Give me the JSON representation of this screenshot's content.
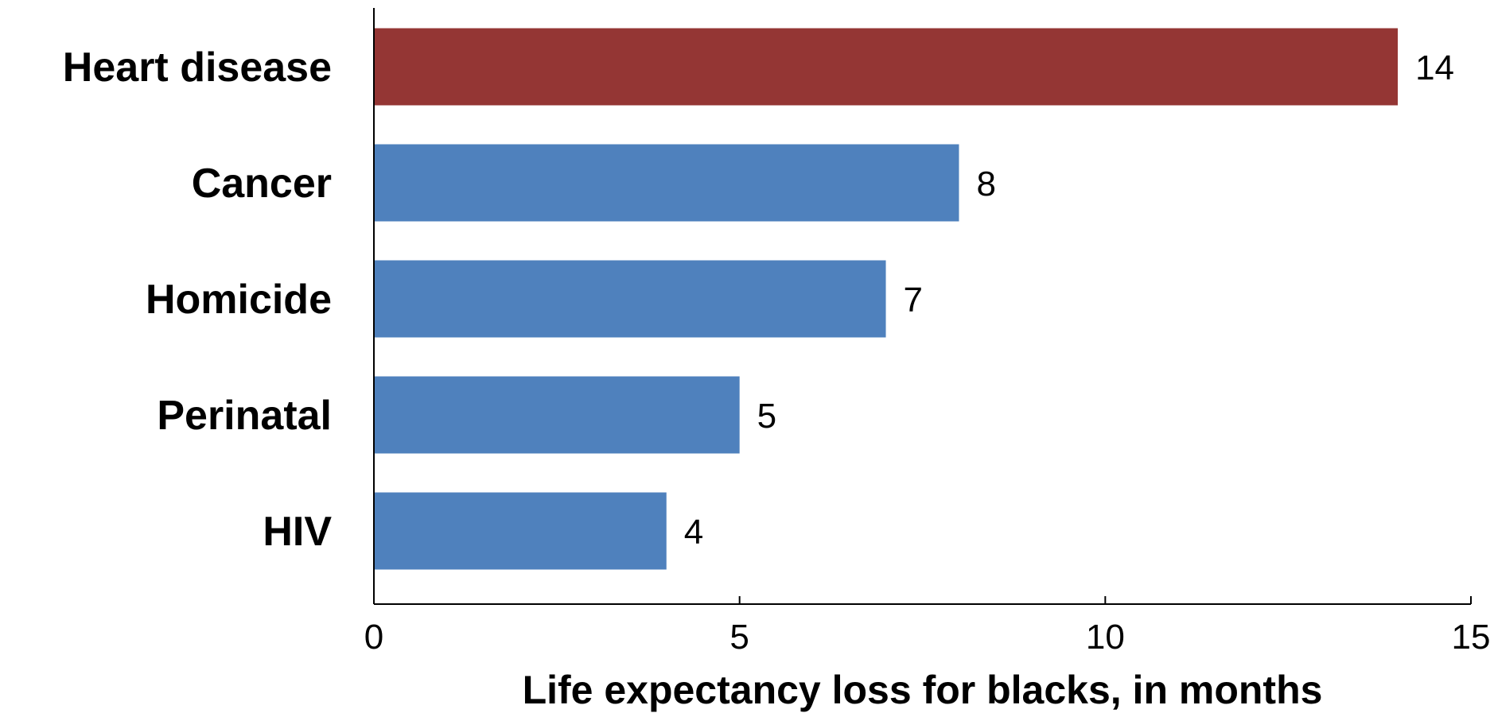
{
  "chart_data": {
    "type": "bar",
    "orientation": "horizontal",
    "title": "",
    "xlabel": "Life expectancy loss for blacks, in months",
    "ylabel": "",
    "categories": [
      "Heart disease",
      "Cancer",
      "Homicide",
      "Perinatal",
      "HIV"
    ],
    "values": [
      14,
      8,
      7,
      5,
      4
    ],
    "data_labels": [
      "14",
      "8",
      "7",
      "5",
      "4"
    ],
    "bar_colors": [
      "#943634",
      "#4F81BD",
      "#4F81BD",
      "#4F81BD",
      "#4F81BD"
    ],
    "xlim": [
      0,
      15
    ],
    "xticks": [
      0,
      5,
      10,
      15
    ],
    "xtick_labels": [
      "0",
      "5",
      "10",
      "15"
    ],
    "grid": false,
    "legend": "none"
  }
}
